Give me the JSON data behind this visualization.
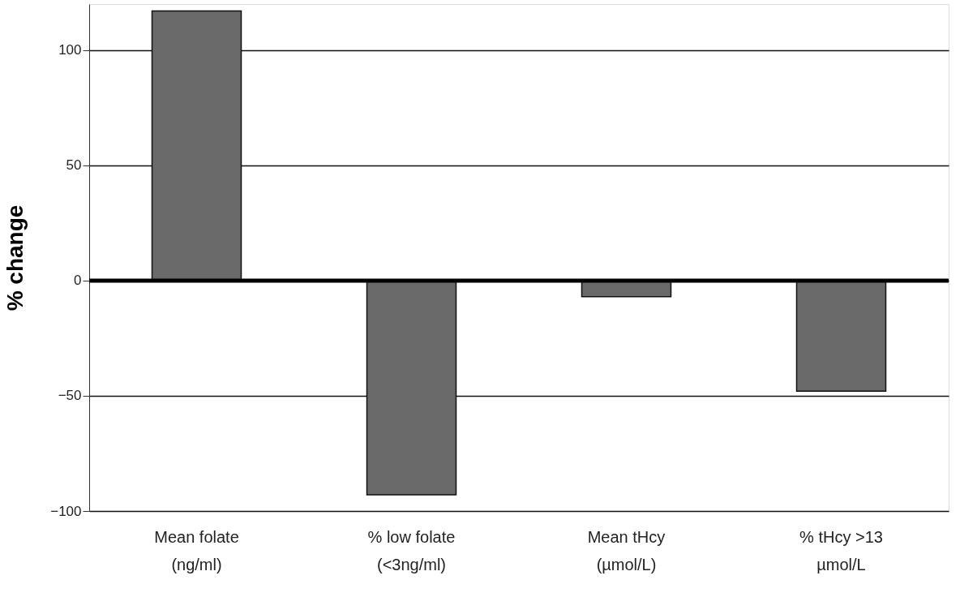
{
  "chart_data": {
    "type": "bar",
    "ylabel": "% change",
    "categories": [
      "Mean folate\n(ng/ml)",
      "% low folate\n(<3ng/ml)",
      "Mean tHcy\n(µmol/L)",
      "% tHcy >13\nµmol/L"
    ],
    "values": [
      117,
      -93,
      -7,
      -48
    ],
    "color": "#696969",
    "ylim": [
      -100,
      120
    ],
    "yticks": [
      -100,
      -50,
      0,
      50,
      100
    ],
    "grid": "y",
    "ref_lines": [
      {
        "axis": "y",
        "value": 0,
        "color": "#000000"
      }
    ]
  }
}
